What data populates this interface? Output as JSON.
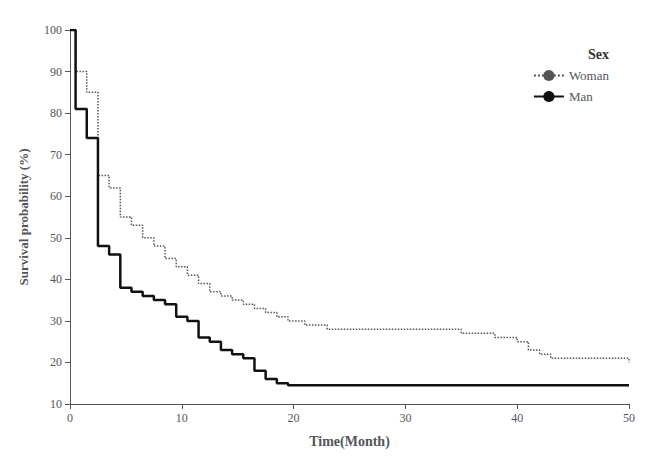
{
  "chart_data": {
    "type": "step",
    "xlabel": "Time(Month)",
    "ylabel": "Survival probability (%)",
    "xlim": [
      0,
      50
    ],
    "ylim": [
      10,
      100
    ],
    "xticks": [
      0,
      10,
      20,
      30,
      40,
      50
    ],
    "yticks": [
      10,
      20,
      30,
      40,
      50,
      60,
      70,
      80,
      90,
      100
    ],
    "grid": false,
    "legend": "upper right",
    "legend_title": "Sex",
    "series": [
      {
        "name": "Woman",
        "color": "#555555",
        "line_style": "dotted",
        "x": [
          0,
          0.5,
          1,
          1.5,
          2,
          2.5,
          3,
          3.5,
          4,
          4.5,
          5,
          5.5,
          6,
          6.5,
          7,
          7.5,
          8,
          8.5,
          9,
          9.5,
          10,
          10.5,
          11,
          11.5,
          12,
          12.5,
          13,
          13.5,
          14,
          14.5,
          15,
          15.5,
          16,
          16.5,
          17,
          17.5,
          18,
          18.5,
          19,
          19.5,
          20,
          21,
          22,
          23,
          24,
          25,
          26,
          27,
          28,
          29,
          30,
          32,
          35,
          38,
          40,
          41,
          42,
          43,
          44,
          45,
          46,
          47,
          48,
          49,
          50
        ],
        "values": [
          100,
          90,
          90,
          85,
          85,
          65,
          65,
          62,
          62,
          55,
          55,
          53,
          53,
          50,
          50,
          48,
          48,
          45,
          45,
          43,
          43,
          41,
          41,
          39,
          39,
          37,
          37,
          36,
          36,
          35,
          35,
          34,
          34,
          33,
          33,
          32,
          32,
          31,
          31,
          30,
          30,
          29,
          29,
          28,
          28,
          28,
          28,
          28,
          28,
          28,
          28,
          28,
          27,
          26,
          25,
          23,
          22,
          21,
          21,
          21,
          21,
          21,
          21,
          21,
          20
        ]
      },
      {
        "name": "Man",
        "color": "#111111",
        "line_style": "solid",
        "x": [
          0,
          0.5,
          1,
          1.5,
          2,
          2.5,
          3,
          3.5,
          4,
          4.5,
          5,
          5.5,
          6,
          6.5,
          7,
          7.5,
          8,
          8.5,
          9,
          9.5,
          10,
          10.5,
          11,
          11.5,
          12,
          12.5,
          13,
          13.5,
          14,
          14.5,
          15,
          15.5,
          16,
          16.5,
          17,
          17.5,
          18,
          18.5,
          19,
          19.5,
          20,
          20.5,
          21,
          50
        ],
        "values": [
          100,
          81,
          81,
          74,
          74,
          48,
          48,
          46,
          46,
          38,
          38,
          37,
          37,
          36,
          36,
          35,
          35,
          34,
          34,
          31,
          31,
          30,
          30,
          26,
          26,
          25,
          25,
          23,
          23,
          22,
          22,
          21,
          21,
          18,
          18,
          16,
          16,
          15,
          15,
          14.5,
          14.5,
          14.5,
          14.5,
          14.5
        ]
      }
    ]
  }
}
